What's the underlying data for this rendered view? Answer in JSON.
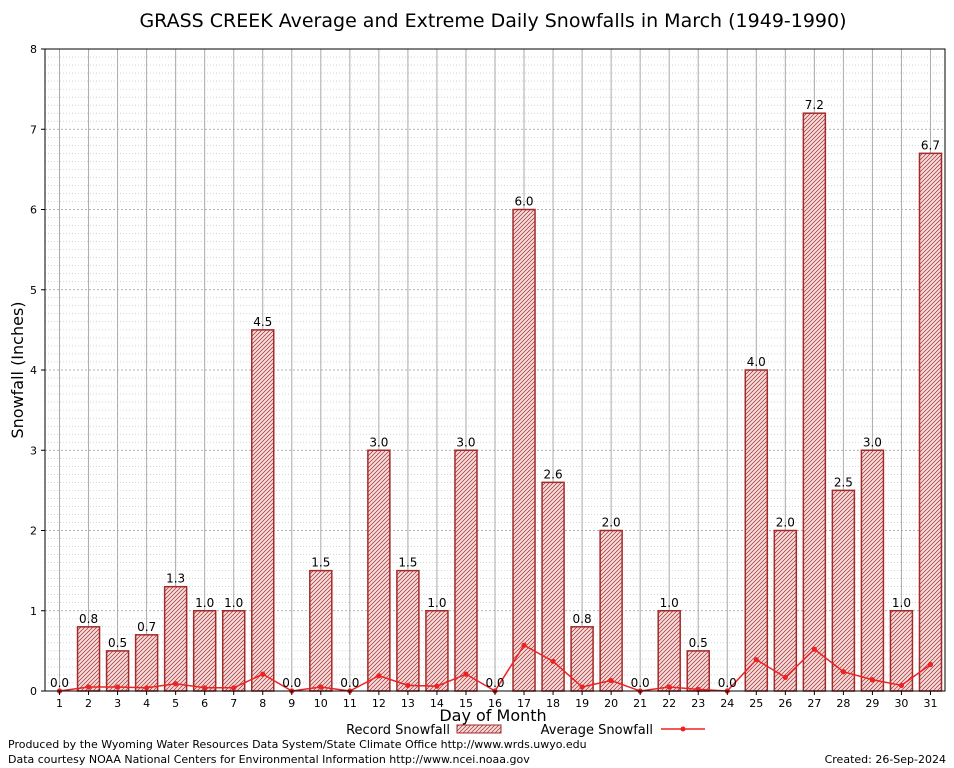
{
  "chart_data": {
    "type": "bar",
    "title": "GRASS CREEK Average and Extreme Daily Snowfalls in March (1949-1990)",
    "xlabel": "Day of Month",
    "ylabel": "Snowfall (Inches)",
    "ylim": [
      0,
      8
    ],
    "yticks": [
      "0",
      "1",
      "2",
      "3",
      "4",
      "5",
      "6",
      "7",
      "8"
    ],
    "grid": true,
    "categories": [
      "1",
      "2",
      "3",
      "4",
      "5",
      "6",
      "7",
      "8",
      "9",
      "10",
      "11",
      "12",
      "13",
      "14",
      "15",
      "16",
      "17",
      "18",
      "19",
      "20",
      "21",
      "22",
      "23",
      "24",
      "25",
      "26",
      "27",
      "28",
      "29",
      "30",
      "31"
    ],
    "series": [
      {
        "name": "Record Snowfall",
        "kind": "bar",
        "color": "#a52a2a",
        "values": [
          0.0,
          0.8,
          0.5,
          0.7,
          1.3,
          1.0,
          1.0,
          4.5,
          0.0,
          1.5,
          0.0,
          3.0,
          1.5,
          1.0,
          3.0,
          0.0,
          6.0,
          2.6,
          0.8,
          2.0,
          0.0,
          1.0,
          0.5,
          0.0,
          4.0,
          2.0,
          7.2,
          2.5,
          3.0,
          1.0,
          6.7
        ],
        "labels": [
          "0.0",
          "0.8",
          "0.5",
          "0.7",
          "1.3",
          "1.0",
          "1.0",
          "4.5",
          "0.0",
          "1.5",
          "0.0",
          "3.0",
          "1.5",
          "1.0",
          "3.0",
          "0.0",
          "6.0",
          "2.6",
          "0.8",
          "2.0",
          "0.0",
          "1.0",
          "0.5",
          "0.0",
          "4.0",
          "2.0",
          "7.2",
          "2.5",
          "3.0",
          "1.0",
          "6.7"
        ]
      },
      {
        "name": "Average Snowfall",
        "kind": "line",
        "color": "#ee2222",
        "values": [
          0.0,
          0.05,
          0.05,
          0.04,
          0.09,
          0.04,
          0.04,
          0.21,
          0.0,
          0.05,
          0.0,
          0.19,
          0.07,
          0.06,
          0.21,
          0.0,
          0.57,
          0.37,
          0.05,
          0.13,
          0.0,
          0.05,
          0.02,
          0.0,
          0.39,
          0.17,
          0.52,
          0.24,
          0.14,
          0.07,
          0.33
        ]
      }
    ],
    "legend_position": "bottom"
  },
  "footer": {
    "produced_by": "Produced by the Wyoming Water Resources Data System/State Climate Office http://www.wrds.uwyo.edu",
    "courtesy": "Data courtesy NOAA National Centers for Environmental Information http://www.ncei.noaa.gov",
    "created": "Created:  26-Sep-2024"
  }
}
